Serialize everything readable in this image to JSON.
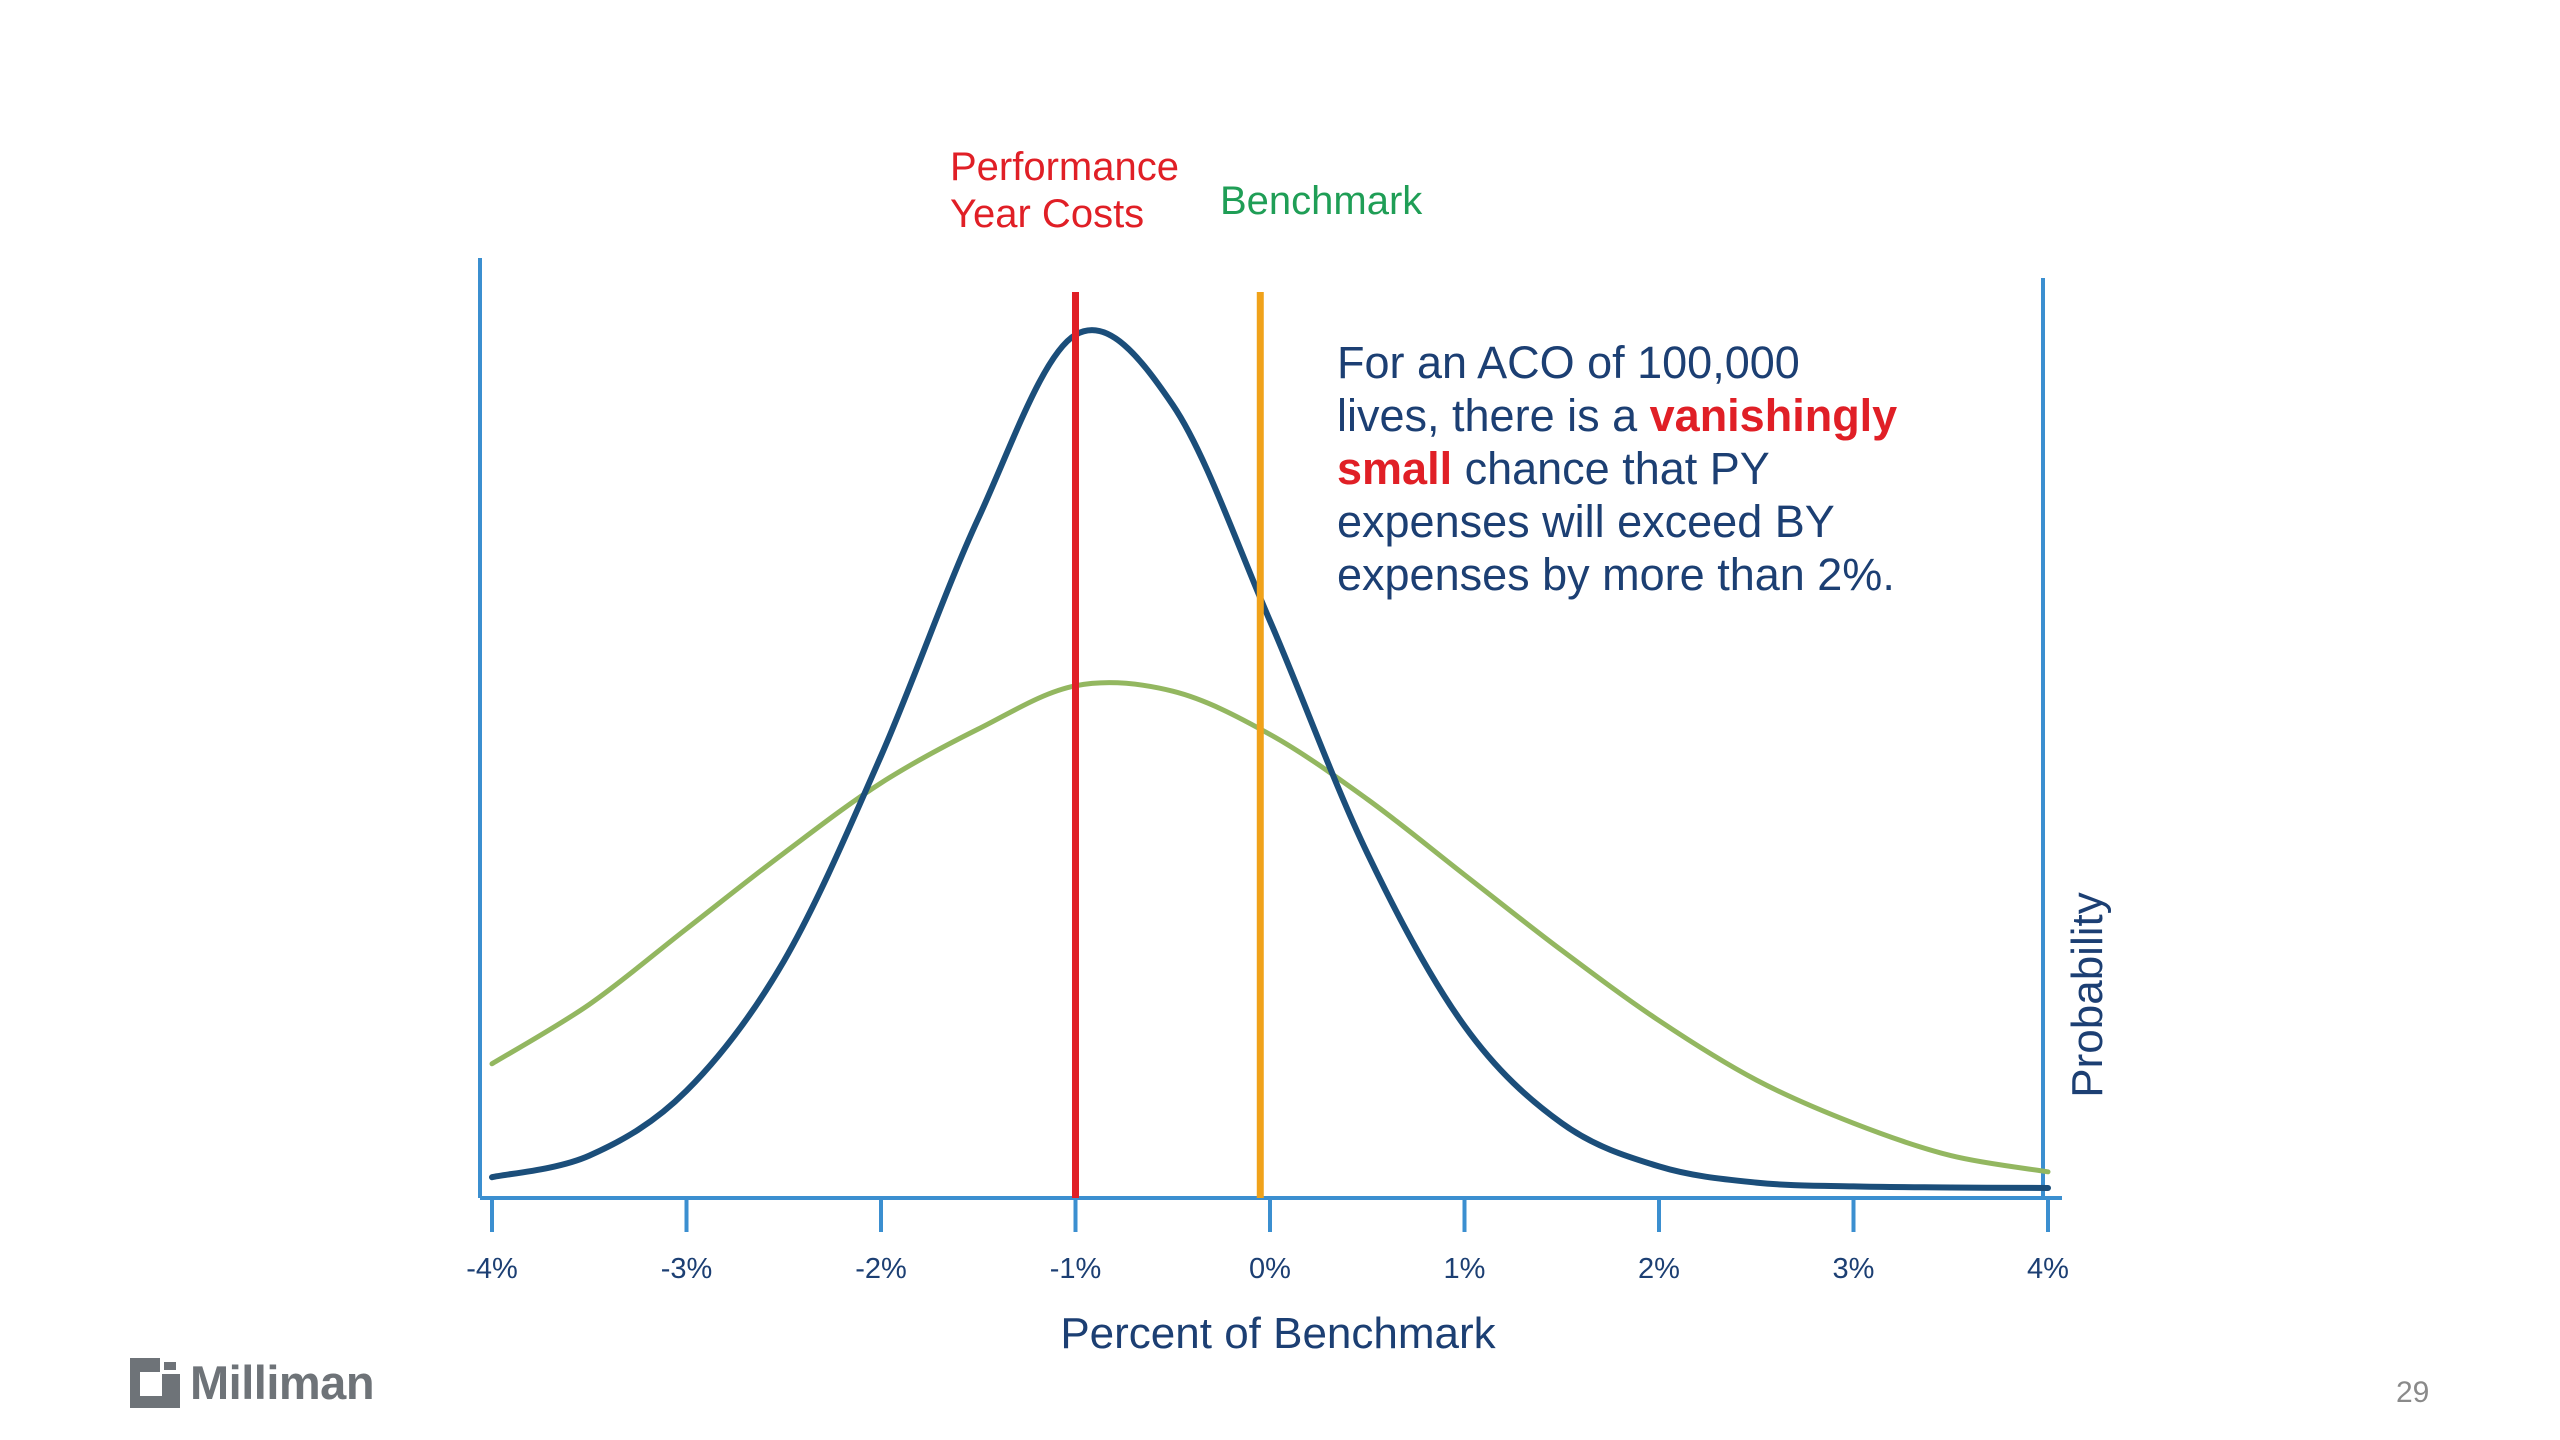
{
  "chart_data": {
    "type": "line",
    "xlabel": "Percent of Benchmark",
    "ylabel": "Probability",
    "xlim": [
      -4,
      4
    ],
    "x_ticks": [
      -4,
      -3,
      -2,
      -1,
      0,
      1,
      2,
      3,
      4
    ],
    "x_tick_labels": [
      "-4%",
      "-3%",
      "-2%",
      "-1%",
      "0%",
      "1%",
      "2%",
      "3%",
      "4%"
    ],
    "series": [
      {
        "curve": "narrow",
        "color": "#1b4e7a",
        "x": [
          -4,
          -3.5,
          -3,
          -2.5,
          -2,
          -1.5,
          -1,
          -0.5,
          0,
          0.5,
          1,
          1.5,
          2,
          2.5,
          3,
          3.5,
          4
        ],
        "y": [
          0.02,
          0.06,
          0.18,
          0.42,
          0.8,
          1.24,
          1.58,
          1.45,
          1.05,
          0.62,
          0.3,
          0.12,
          0.04,
          0.01,
          0.003,
          0.001,
          0.0
        ]
      },
      {
        "curve": "wide",
        "color": "#93b760",
        "x": [
          -4,
          -3.5,
          -3,
          -2.5,
          -2,
          -1.5,
          -1,
          -0.5,
          0,
          0.5,
          1,
          1.5,
          2,
          2.5,
          3,
          3.5,
          4
        ],
        "y": [
          0.23,
          0.34,
          0.48,
          0.62,
          0.75,
          0.85,
          0.93,
          0.92,
          0.84,
          0.72,
          0.58,
          0.44,
          0.31,
          0.2,
          0.12,
          0.06,
          0.03
        ]
      }
    ],
    "vertical_lines": [
      {
        "label": "Performance Year Costs",
        "label_line1": "Performance",
        "label_line2": "Year Costs",
        "x": -1.0,
        "color": "#e01f26"
      },
      {
        "label": "Benchmark",
        "x": -0.05,
        "color": "#f0a21a"
      }
    ],
    "annotation": {
      "line1": "For an ACO of 100,000",
      "line2_pre": "lives, there is a ",
      "line2_em": "vanishingly",
      "line3_em": "small",
      "line3_post": " chance that PY",
      "line4": "expenses will exceed BY",
      "line5": "expenses by more than 2%."
    }
  },
  "footer": {
    "logo_text": "Milliman",
    "page_number": "29"
  }
}
